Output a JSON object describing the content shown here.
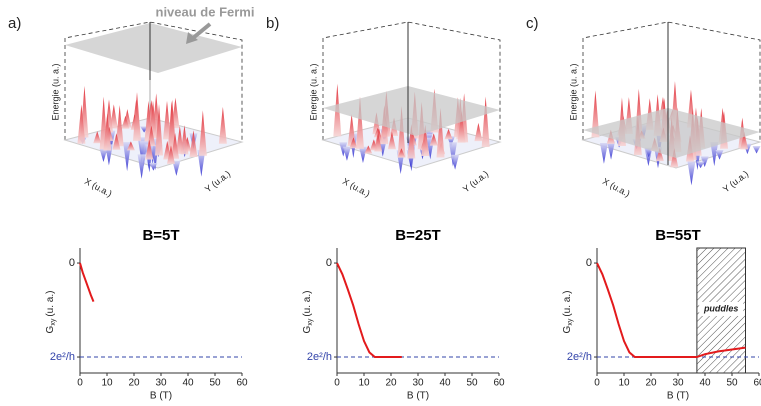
{
  "panels": [
    {
      "label": "a)",
      "energy_label": "Energie (u. a.)",
      "x_label": "X (u.a.)",
      "y_label": "Y (u.a.)"
    },
    {
      "label": "b)",
      "energy_label": "Energie (u. a.)",
      "x_label": "X (u.a.)",
      "y_label": "Y (u.a.)"
    },
    {
      "label": "c)",
      "energy_label": "Energie (u. a.)",
      "x_label": "X (u.a.)",
      "y_label": "Y (u.a.)"
    }
  ],
  "fermi_label": "niveau de Fermi",
  "chart_data": [
    {
      "type": "line",
      "title": "B=5T",
      "xlabel": "B (T)",
      "ylabel": "G",
      "ylabel_sub": "xy",
      "ylabel_unit": "(u. a.)",
      "x": [
        0,
        1,
        2,
        3,
        4,
        5
      ],
      "values": [
        0,
        0.1,
        0.18,
        0.26,
        0.34,
        0.41
      ],
      "color": "#e31a1c",
      "xlim": [
        0,
        60
      ],
      "xticks": [
        0,
        10,
        20,
        30,
        40,
        50,
        60
      ],
      "ylim": [
        1.17,
        -0.16
      ],
      "yticks": [
        0,
        {
          "value": 1,
          "label": "2e²/h"
        }
      ],
      "hline": 1,
      "hline_color": "#3344aa"
    },
    {
      "type": "line",
      "title": "B=25T",
      "xlabel": "B (T)",
      "ylabel": "G",
      "ylabel_sub": "xy",
      "ylabel_unit": "(u. a.)",
      "x": [
        0,
        2,
        4,
        6,
        8,
        10,
        12,
        14,
        16,
        20,
        24
      ],
      "values": [
        0,
        0.12,
        0.28,
        0.45,
        0.65,
        0.83,
        0.95,
        1,
        1,
        1,
        1
      ],
      "color": "#e31a1c",
      "xlim": [
        0,
        60
      ],
      "xticks": [
        0,
        10,
        20,
        30,
        40,
        50,
        60
      ],
      "ylim": [
        1.17,
        -0.16
      ],
      "yticks": [
        0,
        {
          "value": 1,
          "label": "2e²/h"
        }
      ],
      "hline": 1,
      "hline_color": "#3344aa"
    },
    {
      "type": "line",
      "title": "B=55T",
      "xlabel": "B (T)",
      "ylabel": "G",
      "ylabel_sub": "xy",
      "ylabel_unit": "(u. a.)",
      "x": [
        0,
        2,
        4,
        6,
        8,
        10,
        12,
        14,
        16,
        20,
        25,
        30,
        37,
        40,
        45,
        50,
        55
      ],
      "values": [
        0,
        0.12,
        0.28,
        0.45,
        0.65,
        0.83,
        0.95,
        1,
        1,
        1,
        1,
        1,
        1,
        0.97,
        0.94,
        0.92,
        0.9
      ],
      "color": "#e31a1c",
      "xlim": [
        0,
        60
      ],
      "xticks": [
        0,
        10,
        20,
        30,
        40,
        50,
        60
      ],
      "ylim": [
        1.17,
        -0.16
      ],
      "yticks": [
        0,
        {
          "value": 1,
          "label": "2e²/h"
        }
      ],
      "hline": 1,
      "hline_color": "#3344aa",
      "shaded_region": [
        37,
        55
      ],
      "shaded_label": "puddles"
    }
  ]
}
